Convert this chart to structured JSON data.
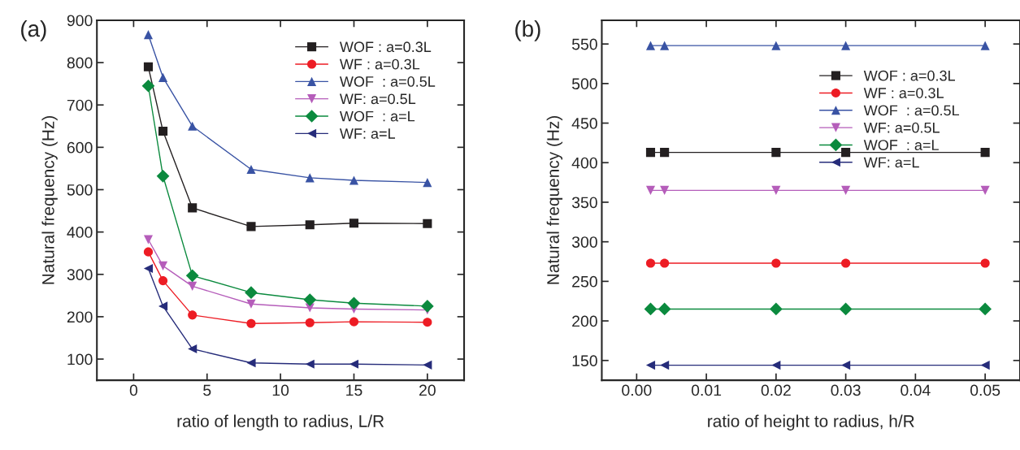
{
  "chart_data": [
    {
      "type": "line",
      "title": "(a)",
      "xlabel": "ratio of length to radius, L/R",
      "ylabel": "Natural frequency (Hz)",
      "x": [
        1,
        2,
        4,
        8,
        12,
        15,
        20
      ],
      "xlim": [
        -2.5,
        22.5
      ],
      "xticks": [
        0,
        5,
        10,
        15,
        20
      ],
      "ylim": [
        50,
        900
      ],
      "yticks": [
        100,
        200,
        300,
        400,
        500,
        600,
        700,
        800,
        900
      ],
      "grid": false,
      "legend": "top right",
      "series": [
        {
          "name": "WOF : a=0.3L",
          "color": "#231f20",
          "marker": "square",
          "values": [
            790,
            638,
            457,
            413,
            417,
            421,
            420
          ]
        },
        {
          "name": "WF : a=0.3L",
          "color": "#ed1c24",
          "marker": "circle",
          "values": [
            353,
            285,
            204,
            184,
            186,
            188,
            187
          ]
        },
        {
          "name": "WOF  : a=0.5L",
          "color": "#3953a4",
          "marker": "triangle",
          "values": [
            866,
            765,
            650,
            548,
            528,
            522,
            517
          ]
        },
        {
          "name": "WF: a=0.5L",
          "color": "#b55dba",
          "marker": "triangle_down",
          "values": [
            382,
            320,
            272,
            230,
            221,
            218,
            216
          ]
        },
        {
          "name": "WOF  : a=L",
          "color": "#0b8a3e",
          "marker": "diamond",
          "values": [
            745,
            532,
            297,
            257,
            240,
            232,
            225
          ]
        },
        {
          "name": "WF: a=L",
          "color": "#262c7a",
          "marker": "triangle_left",
          "values": [
            314,
            225,
            124,
            91,
            88,
            88,
            86
          ]
        }
      ]
    },
    {
      "type": "line",
      "title": "(b)",
      "xlabel": "ratio of height to radius, h/R",
      "ylabel": "Natural frequency (Hz)",
      "x": [
        0.002,
        0.004,
        0.02,
        0.03,
        0.05
      ],
      "xlim": [
        -0.005,
        0.055
      ],
      "xticks": [
        {
          "value": 0,
          "label": "0.00"
        },
        0.01,
        0.02,
        0.03,
        0.04,
        0.05
      ],
      "ylim": [
        125,
        580
      ],
      "yticks": [
        150,
        200,
        250,
        300,
        350,
        400,
        450,
        500,
        550
      ],
      "grid": false,
      "legend": "right",
      "series": [
        {
          "name": "WOF : a=0.3L",
          "color": "#231f20",
          "marker": "square",
          "values": [
            413,
            413,
            413,
            413,
            413
          ]
        },
        {
          "name": "WF : a=0.3L",
          "color": "#ed1c24",
          "marker": "circle",
          "values": [
            273,
            273,
            273,
            273,
            273
          ]
        },
        {
          "name": "WOF  : a=0.5L",
          "color": "#3953a4",
          "marker": "triangle",
          "values": [
            548,
            548,
            548,
            548,
            548
          ]
        },
        {
          "name": "WF: a=0.5L",
          "color": "#b55dba",
          "marker": "triangle_down",
          "values": [
            365,
            365,
            365,
            365,
            365
          ]
        },
        {
          "name": "WOF  : a=L",
          "color": "#0b8a3e",
          "marker": "diamond",
          "values": [
            215,
            215,
            215,
            215,
            215
          ]
        },
        {
          "name": "WF: a=L",
          "color": "#262c7a",
          "marker": "triangle_left",
          "values": [
            144,
            144,
            144,
            144,
            144
          ]
        }
      ]
    }
  ]
}
